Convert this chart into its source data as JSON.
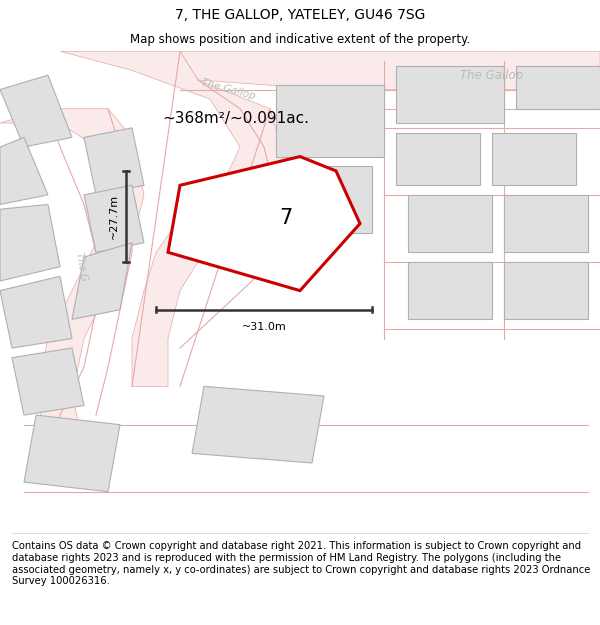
{
  "title": "7, THE GALLOP, YATELEY, GU46 7SG",
  "subtitle": "Map shows position and indicative extent of the property.",
  "footnote": "Contains OS data © Crown copyright and database right 2021. This information is subject to Crown copyright and database rights 2023 and is reproduced with the permission of HM Land Registry. The polygons (including the associated geometry, namely x, y co-ordinates) are subject to Crown copyright and database rights 2023 Ordnance Survey 100026316.",
  "area_label": "~368m²/~0.091ac.",
  "number_label": "7",
  "dim_horiz": "~31.0m",
  "dim_vert": "~27.7m",
  "road_label_top_right": "The Gallop",
  "road_label_diag_top": "The Gallop",
  "road_label_diag_left": "The G",
  "map_bg": "#f7f7f7",
  "plot_outline_color": "#cc0000",
  "neighbor_fill": "#e0e0e0",
  "neighbor_stroke": "#b0b0b0",
  "road_line_color": "#e8a8a8",
  "dim_line_color": "#333333",
  "road_text_color": "#bbbbbb",
  "title_fontsize": 10,
  "subtitle_fontsize": 8.5,
  "footnote_fontsize": 7.2
}
